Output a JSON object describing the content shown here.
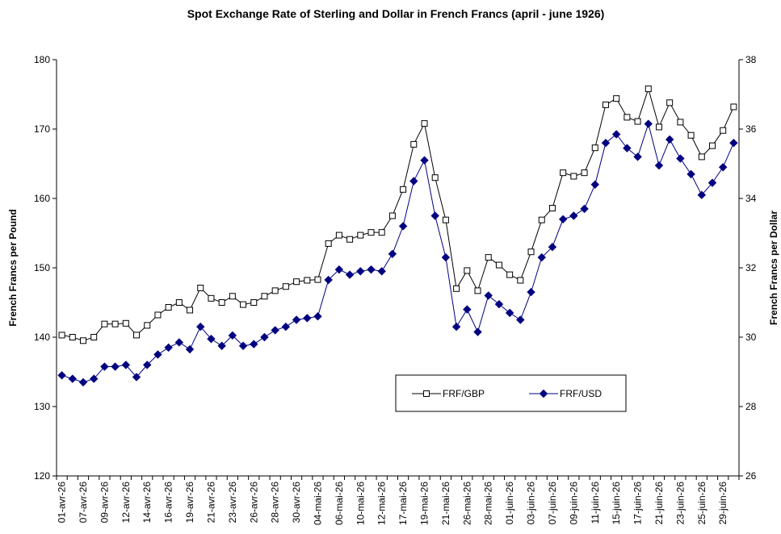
{
  "chart_data": {
    "type": "line",
    "title": "Spot Exchange Rate of Sterling and Dollar in French Francs (april - june 1926)",
    "y_label": "French Francs per Pound",
    "y2_label": "French Francs per Dollar",
    "categories": [
      "01-avr-26",
      null,
      "07-avr-26",
      null,
      "09-avr-26",
      null,
      "12-avr-26",
      null,
      "14-avr-26",
      null,
      "16-avr-26",
      null,
      "19-avr-26",
      null,
      "21-avr-26",
      null,
      "23-avr-26",
      null,
      "26-avr-26",
      null,
      "28-avr-26",
      null,
      "30-avr-26",
      null,
      "04-mai-26",
      null,
      "06-mai-26",
      null,
      "10-mai-26",
      null,
      "12-mai-26",
      null,
      "17-mai-26",
      null,
      "19-mai-26",
      null,
      "21-mai-26",
      null,
      "26-mai-26",
      null,
      "28-mai-26",
      null,
      "01-juin-26",
      null,
      "03-juin-26",
      null,
      "07-juin-26",
      null,
      "09-juin-26",
      null,
      "11-juin-26",
      null,
      "15-juin-26",
      null,
      "17-juin-26",
      null,
      "21-juin-26",
      null,
      "23-juin-26",
      null,
      "25-juin-26",
      null,
      "29-juin-26",
      null
    ],
    "series": [
      {
        "name": "FRF/GBP",
        "color": "#000000",
        "marker": "square",
        "values": [
          140.3,
          140.0,
          139.5,
          140.0,
          141.9,
          141.9,
          142.0,
          140.3,
          141.7,
          143.2,
          144.3,
          145.0,
          143.9,
          147.1,
          145.6,
          145.0,
          145.9,
          144.7,
          145.0,
          145.9,
          146.7,
          147.3,
          148.0,
          148.2,
          148.3,
          153.5,
          154.7,
          154.1,
          154.7,
          155.1,
          155.1,
          157.5,
          161.3,
          167.8,
          170.8,
          163.0,
          156.9,
          147.0,
          149.6,
          146.7,
          151.5,
          150.4,
          149.0,
          148.2,
          152.3,
          156.9,
          158.6,
          163.7,
          163.2,
          163.7,
          167.3,
          173.5,
          174.4,
          171.7,
          171.1,
          175.8,
          170.3,
          173.8,
          171.0,
          169.1,
          166.0,
          167.6,
          169.8,
          173.2
        ]
      },
      {
        "name": "FRF/USD",
        "color": "#000080",
        "marker": "diamond",
        "axis": "y2",
        "values": [
          28.9,
          28.8,
          28.7,
          28.8,
          29.15,
          29.15,
          29.2,
          28.85,
          29.2,
          29.5,
          29.7,
          29.85,
          29.65,
          30.3,
          29.95,
          29.75,
          30.05,
          29.75,
          29.8,
          30.0,
          30.2,
          30.3,
          30.5,
          30.55,
          30.6,
          31.65,
          31.95,
          31.8,
          31.9,
          31.95,
          31.9,
          32.4,
          33.2,
          34.5,
          35.1,
          33.5,
          32.3,
          30.3,
          30.8,
          30.15,
          31.2,
          30.95,
          30.7,
          30.5,
          31.3,
          32.3,
          32.6,
          33.4,
          33.5,
          33.7,
          34.4,
          35.6,
          35.85,
          35.45,
          35.2,
          36.15,
          34.95,
          35.7,
          35.15,
          34.7,
          34.1,
          34.45,
          34.9,
          35.6
        ]
      }
    ],
    "ylim": [
      120,
      180
    ],
    "yticks": [
      120,
      130,
      140,
      150,
      160,
      170,
      180
    ],
    "y2lim": [
      26,
      38
    ],
    "y2ticks": [
      26,
      28,
      30,
      32,
      34,
      36,
      38
    ],
    "legend": "bottom-right",
    "grid": false
  }
}
